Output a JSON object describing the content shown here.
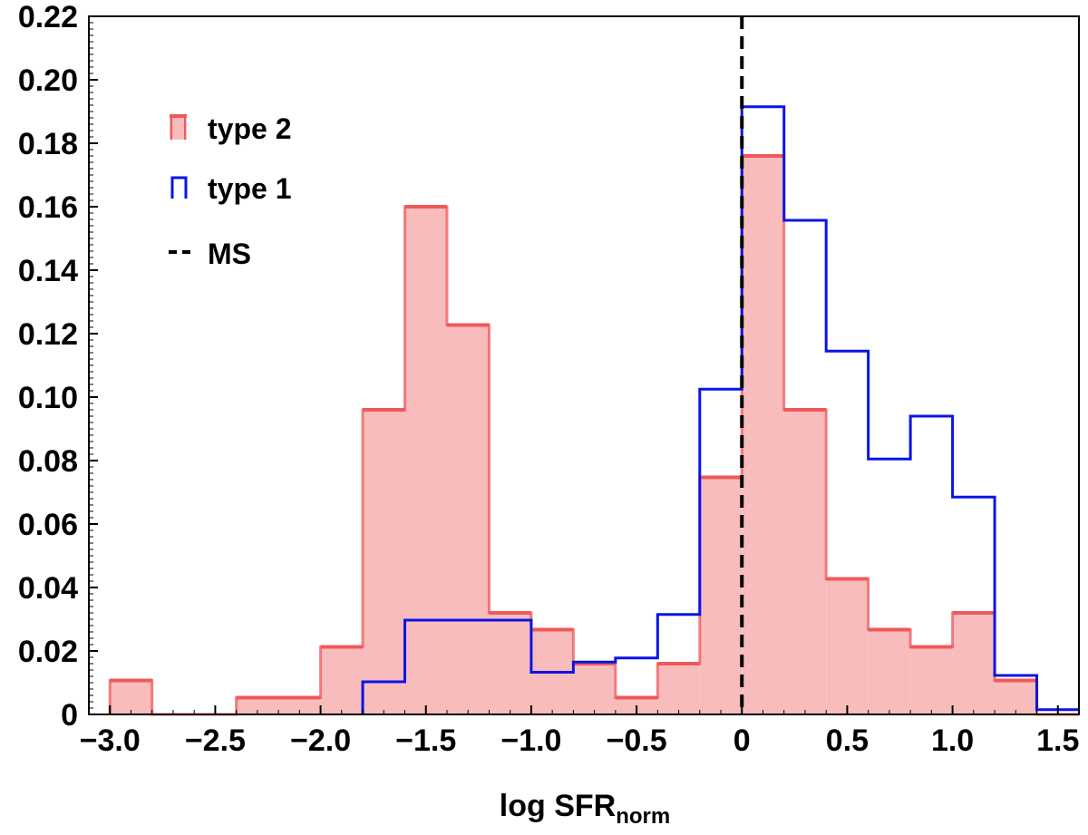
{
  "chart_data": {
    "type": "histogram",
    "xlabel_main": "log SFR",
    "xlabel_sub": "norm",
    "ylabel": "",
    "xlim": [
      -3.1,
      1.6
    ],
    "ylim": [
      0,
      0.22
    ],
    "xticks": [
      -3.0,
      -2.5,
      -2.0,
      -1.5,
      -1.0,
      -0.5,
      0,
      0.5,
      1.0,
      1.5
    ],
    "xtick_labels": [
      "−3.0",
      "−2.5",
      "−2.0",
      "−1.5",
      "−1.0",
      "−0.5",
      "0",
      "0.5",
      "1.0",
      "1.5"
    ],
    "yticks": [
      0,
      0.02,
      0.04,
      0.06,
      0.08,
      0.1,
      0.12,
      0.14,
      0.16,
      0.18,
      0.2,
      0.22
    ],
    "ytick_labels": [
      "0",
      "0.02",
      "0.04",
      "0.06",
      "0.08",
      "0.10",
      "0.12",
      "0.14",
      "0.16",
      "0.18",
      "0.20",
      "0.22"
    ],
    "bin_edges": [
      -3.0,
      -2.8,
      -2.6,
      -2.4,
      -2.2,
      -2.0,
      -1.8,
      -1.6,
      -1.4,
      -1.2,
      -1.0,
      -0.8,
      -0.6,
      -0.4,
      -0.2,
      0.0,
      0.2,
      0.4,
      0.6,
      0.8,
      1.0,
      1.2,
      1.4,
      1.6
    ],
    "series": [
      {
        "name": "type 2",
        "style": "filled",
        "color": "#ef5959",
        "fill": "#f8bcbc",
        "values": [
          0.0107,
          0,
          0,
          0.0053,
          0.0053,
          0.0213,
          0.096,
          0.16,
          0.1227,
          0.032,
          0.0267,
          0.016,
          0.0053,
          0.016,
          0.0747,
          0.176,
          0.096,
          0.0427,
          0.0267,
          0.0213,
          0.032,
          0.0107,
          0
        ]
      },
      {
        "name": "type 1",
        "style": "step",
        "color": "#0a14e6",
        "values": [
          0,
          0,
          0,
          0,
          0,
          0,
          0.0103,
          0.0297,
          0.0297,
          0.0297,
          0.0133,
          0.0165,
          0.0178,
          0.0315,
          0.1025,
          0.1915,
          0.1557,
          0.1145,
          0.0805,
          0.094,
          0.0685,
          0.0123,
          0.0015
        ]
      }
    ],
    "reference_line": {
      "name": "MS",
      "x": 0,
      "style": "dashed",
      "color": "#000000"
    },
    "legend": {
      "position": "top-left",
      "entries": [
        "type 2",
        "type 1",
        "MS"
      ]
    }
  }
}
